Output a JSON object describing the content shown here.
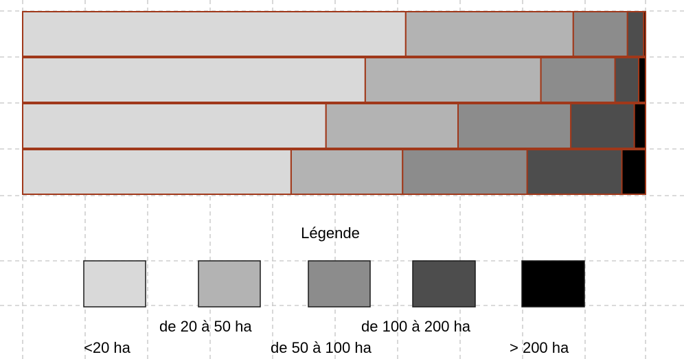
{
  "chart_data": {
    "type": "bar",
    "orientation": "horizontal",
    "stacked": true,
    "normalized": true,
    "title": "",
    "xlabel": "",
    "ylabel": "",
    "xlim": [
      0,
      100
    ],
    "grid": true,
    "legend_title": "Légende",
    "legend_position": "bottom",
    "categories": [
      "",
      "",
      "",
      ""
    ],
    "series": [
      {
        "name": "<20 ha",
        "color": "#d9d9d9",
        "values": [
          61.5,
          55.0,
          48.7,
          43.1
        ]
      },
      {
        "name": "de 20 à 50 ha",
        "color": "#b3b3b3",
        "values": [
          26.9,
          28.2,
          21.2,
          17.9
        ]
      },
      {
        "name": "de 50 à 100 ha",
        "color": "#8c8c8c",
        "values": [
          8.7,
          11.9,
          18.1,
          20.0
        ]
      },
      {
        "name": "de 100 à 200 ha",
        "color": "#4d4d4d",
        "values": [
          2.6,
          3.8,
          10.2,
          15.2
        ]
      },
      {
        "name": "> 200 ha",
        "color": "#000000",
        "values": [
          0.3,
          1.1,
          1.8,
          3.8
        ]
      }
    ],
    "bar_border_color": "#a0381a"
  }
}
